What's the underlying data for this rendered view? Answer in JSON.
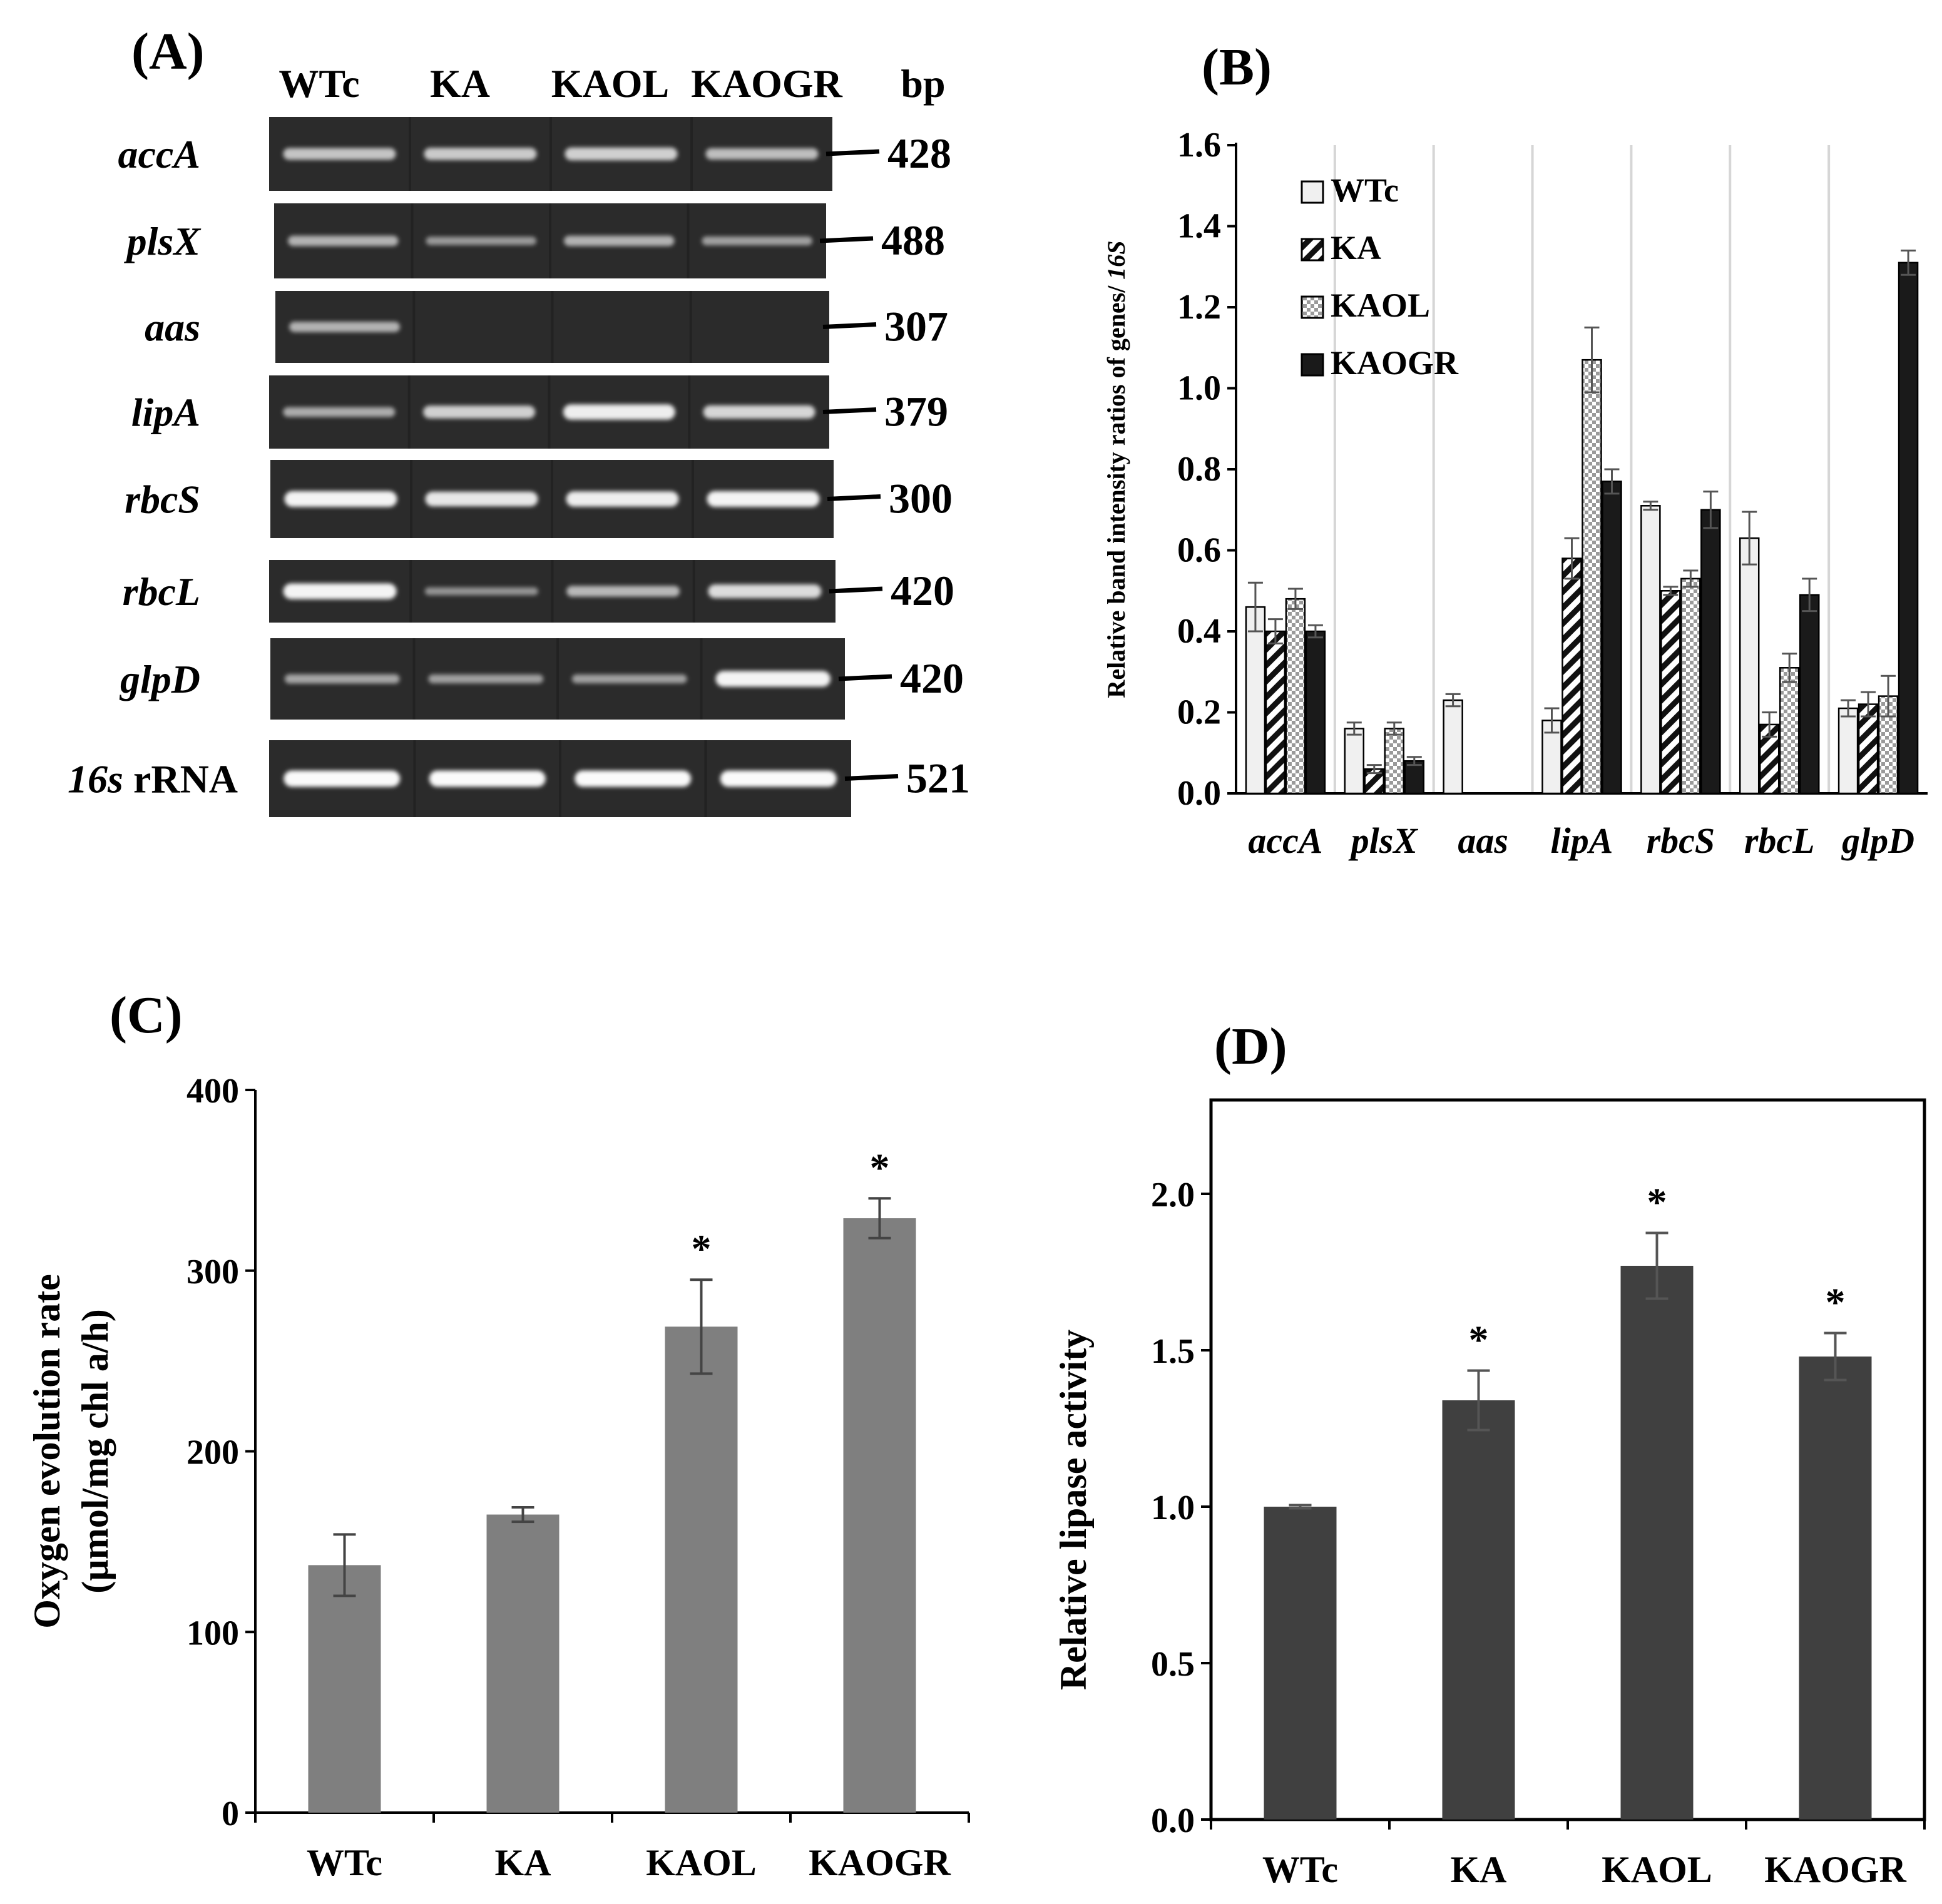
{
  "panelA": {
    "label": "(A)",
    "lanes": [
      "WTc",
      "KA",
      "KAOL",
      "KAOGR"
    ],
    "bp_header": "bp",
    "genes": [
      {
        "name": "accA",
        "suffix": "",
        "bp": "428",
        "bands": [
          0.55,
          0.6,
          0.65,
          0.5
        ]
      },
      {
        "name": "plsX",
        "suffix": "",
        "bp": "488",
        "bands": [
          0.4,
          0.2,
          0.4,
          0.25
        ]
      },
      {
        "name": "aas",
        "suffix": "",
        "bp": "307",
        "bands": [
          0.4,
          0.0,
          0.0,
          0.0
        ]
      },
      {
        "name": "lipA",
        "suffix": "",
        "bp": "379",
        "bands": [
          0.35,
          0.65,
          0.9,
          0.7
        ]
      },
      {
        "name": "rbcS",
        "suffix": "",
        "bp": "300",
        "bands": [
          0.95,
          0.85,
          0.9,
          0.95
        ]
      },
      {
        "name": "rbcL",
        "suffix": "",
        "bp": "420",
        "bands": [
          0.95,
          0.15,
          0.45,
          0.75
        ]
      },
      {
        "name": "glpD",
        "suffix": "",
        "bp": "420",
        "bands": [
          0.3,
          0.25,
          0.25,
          0.95
        ]
      },
      {
        "name": "16s",
        "suffix": " rRNA",
        "bp": "521",
        "bands": [
          1.0,
          1.0,
          1.0,
          1.0
        ]
      }
    ]
  },
  "chart_data": [
    {
      "id": "B",
      "label": "(B)",
      "type": "bar",
      "title": "",
      "ylabel": "Relative band intensity ratios of genes/ ",
      "ylabel_italic": "16S",
      "ylim": [
        0,
        1.6
      ],
      "yticks": [
        "0.0",
        "0.2",
        "0.4",
        "0.6",
        "0.8",
        "1.0",
        "1.2",
        "1.4",
        "1.6"
      ],
      "categories": [
        "accA",
        "plsX",
        "aas",
        "lipA",
        "rbcS",
        "rbcL",
        "glpD"
      ],
      "legend_position": "top-left",
      "series": [
        {
          "name": "WTc",
          "fill": "#f0f0f0",
          "pattern": "none",
          "values": [
            0.46,
            0.16,
            0.23,
            0.18,
            0.71,
            0.63,
            0.21
          ],
          "errors": [
            0.06,
            0.015,
            0.015,
            0.03,
            0.01,
            0.065,
            0.02
          ]
        },
        {
          "name": "KA",
          "fill": "#ffffff",
          "pattern": "diagonal",
          "values": [
            0.4,
            0.06,
            0.0,
            0.58,
            0.5,
            0.17,
            0.22
          ],
          "errors": [
            0.03,
            0.01,
            0.0,
            0.05,
            0.01,
            0.03,
            0.03
          ]
        },
        {
          "name": "KAOL",
          "fill": "#ffffff",
          "pattern": "checker",
          "values": [
            0.48,
            0.16,
            0.0,
            1.07,
            0.53,
            0.31,
            0.24
          ],
          "errors": [
            0.025,
            0.015,
            0.0,
            0.08,
            0.02,
            0.035,
            0.05
          ]
        },
        {
          "name": "KAOGR",
          "fill": "#1a1a1a",
          "pattern": "none",
          "values": [
            0.4,
            0.08,
            0.0,
            0.77,
            0.7,
            0.49,
            1.31
          ],
          "errors": [
            0.015,
            0.01,
            0.0,
            0.03,
            0.045,
            0.04,
            0.03
          ]
        }
      ]
    },
    {
      "id": "C",
      "label": "(C)",
      "type": "bar",
      "title": "",
      "ylabel_line1": "Oxygen evolution rate",
      "ylabel_line2": "(µmol/mg chl a/h)",
      "ylim": [
        0,
        400
      ],
      "yticks": [
        "0",
        "100",
        "200",
        "300",
        "400"
      ],
      "categories": [
        "WTc",
        "KA",
        "KAOL",
        "KAOGR"
      ],
      "color": "#7f7f7f",
      "values": [
        137,
        165,
        269,
        329
      ],
      "errors": [
        17,
        4,
        26,
        11
      ],
      "significance": [
        "",
        "",
        "*",
        "*"
      ]
    },
    {
      "id": "D",
      "label": "(D)",
      "type": "bar",
      "title": "",
      "ylabel": "Relative lipase activity",
      "ylim": [
        0,
        2.3
      ],
      "yticks": [
        "0.0",
        "0.5",
        "1.0",
        "1.5",
        "2.0"
      ],
      "categories": [
        "WTc",
        "KA",
        "KAOL",
        "KAOGR"
      ],
      "color": "#404040",
      "values": [
        1.0,
        1.34,
        1.77,
        1.48
      ],
      "errors": [
        0.005,
        0.095,
        0.105,
        0.075
      ],
      "significance": [
        "",
        "*",
        "*",
        "*"
      ]
    }
  ]
}
